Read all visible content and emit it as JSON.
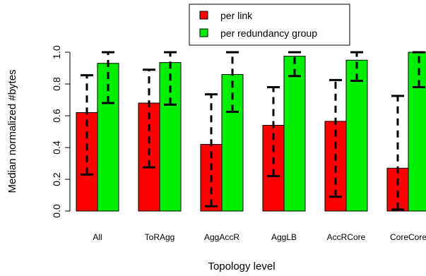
{
  "chart_data": {
    "type": "bar",
    "categories": [
      "All",
      "ToRAgg",
      "AggAccR",
      "AggLB",
      "AccRCore",
      "CoreCore"
    ],
    "series": [
      {
        "name": "per link",
        "color": "#ff0000",
        "values": [
          0.62,
          0.68,
          0.42,
          0.54,
          0.565,
          0.27
        ],
        "err_low": [
          0.23,
          0.275,
          0.03,
          0.22,
          0.09,
          0.01
        ],
        "err_high": [
          0.855,
          0.89,
          0.735,
          0.78,
          0.825,
          0.725
        ]
      },
      {
        "name": "per redundancy group",
        "color": "#00ee00",
        "values": [
          0.93,
          0.935,
          0.86,
          0.975,
          0.95,
          1.0
        ],
        "err_low": [
          0.68,
          0.67,
          0.625,
          0.85,
          0.82,
          0.78
        ],
        "err_high": [
          1.0,
          1.0,
          1.0,
          1.0,
          1.0,
          1.0
        ]
      }
    ],
    "title": "",
    "xlabel": "Topology level",
    "ylabel": "Median normalized #bytes",
    "ylim": [
      0,
      1.05
    ],
    "yticks": [
      "0.0",
      "0.2",
      "0.4",
      "0.6",
      "0.8",
      "1.0"
    ],
    "legend_position": "top-center",
    "grid": false
  }
}
